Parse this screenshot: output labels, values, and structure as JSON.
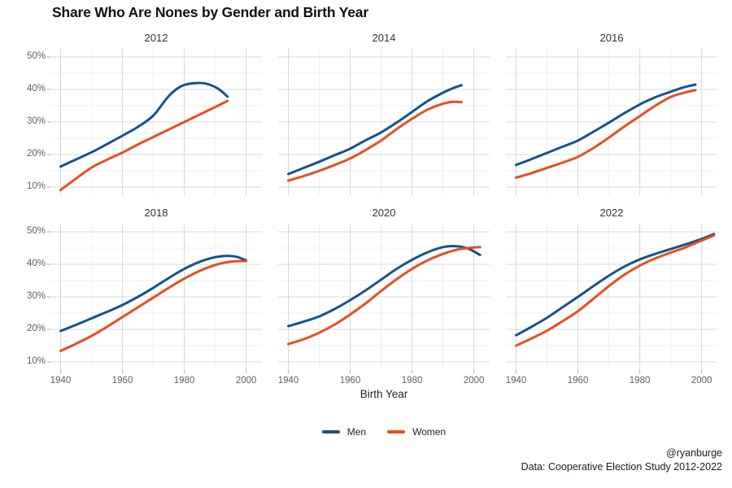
{
  "title": "Share Who Are Nones by Gender and Birth Year",
  "axis": {
    "x_label": "Birth Year"
  },
  "legend": {
    "men_label": "Men",
    "women_label": "Women"
  },
  "caption": {
    "line1": "@ryanburge",
    "line2": "Data: Cooperative Election Study 2012-2022"
  },
  "colors": {
    "men": "#17538c",
    "women": "#e84e1f",
    "grid_major": "#d9d9d9",
    "grid_minor": "#efefef",
    "tick_mark": "#b8b8b8",
    "tick_label": "#5f5f5f"
  },
  "chart_data": {
    "type": "line",
    "title": "Share Who Are Nones by Gender and Birth Year",
    "xlabel": "Birth Year",
    "ylabel": "",
    "legend_position": "bottom",
    "grid": true,
    "xlim": [
      1936.7,
      2005.1
    ],
    "ylim": [
      7.5,
      52.5
    ],
    "x_ticks": [
      {
        "value": 1940,
        "label": "1940"
      },
      {
        "value": 1960,
        "label": "1960"
      },
      {
        "value": 1980,
        "label": "1980"
      },
      {
        "value": 2000,
        "label": "2000"
      }
    ],
    "y_ticks": [
      {
        "value": 10,
        "label": "10%"
      },
      {
        "value": 20,
        "label": "20%"
      },
      {
        "value": 30,
        "label": "30%"
      },
      {
        "value": 40,
        "label": "40%"
      },
      {
        "value": 50,
        "label": "50%"
      }
    ],
    "series_names": [
      "Men",
      "Women"
    ],
    "facets": [
      {
        "label": "2012",
        "series": [
          {
            "name": "Men",
            "x": [
              1940,
              1945,
              1950,
              1955,
              1960,
              1965,
              1970,
              1975,
              1979,
              1983,
              1987,
              1991,
              1994
            ],
            "y": [
              16.3,
              18.5,
              20.7,
              23.2,
              25.8,
              28.5,
              32.0,
              38.0,
              41.0,
              41.9,
              41.8,
              40.2,
              37.8
            ]
          },
          {
            "name": "Women",
            "x": [
              1940,
              1945,
              1950,
              1955,
              1960,
              1965,
              1970,
              1975,
              1980,
              1985,
              1990,
              1994
            ],
            "y": [
              9.1,
              12.6,
              16.0,
              18.4,
              20.6,
              23.1,
              25.4,
              27.7,
              30.0,
              32.3,
              34.6,
              36.5
            ]
          }
        ]
      },
      {
        "label": "2014",
        "series": [
          {
            "name": "Men",
            "x": [
              1940,
              1945,
              1950,
              1955,
              1960,
              1965,
              1970,
              1975,
              1980,
              1985,
              1990,
              1993,
              1996
            ],
            "y": [
              14.0,
              15.9,
              17.8,
              19.8,
              21.8,
              24.4,
              26.8,
              29.8,
              33.1,
              36.4,
              39.0,
              40.3,
              41.3
            ]
          },
          {
            "name": "Women",
            "x": [
              1940,
              1945,
              1950,
              1955,
              1960,
              1965,
              1970,
              1975,
              1980,
              1985,
              1990,
              1993,
              1996
            ],
            "y": [
              12.0,
              13.4,
              15.0,
              16.8,
              18.8,
              21.4,
              24.3,
              27.8,
              31.0,
              33.8,
              35.6,
              36.2,
              36.1
            ]
          }
        ]
      },
      {
        "label": "2016",
        "series": [
          {
            "name": "Men",
            "x": [
              1940,
              1945,
              1950,
              1955,
              1960,
              1965,
              1970,
              1975,
              1980,
              1985,
              1990,
              1994,
              1998
            ],
            "y": [
              16.8,
              18.6,
              20.5,
              22.4,
              24.3,
              27.0,
              29.8,
              32.7,
              35.4,
              37.6,
              39.3,
              40.6,
              41.5
            ]
          },
          {
            "name": "Women",
            "x": [
              1940,
              1945,
              1950,
              1955,
              1960,
              1965,
              1970,
              1975,
              1980,
              1985,
              1990,
              1994,
              1998
            ],
            "y": [
              12.9,
              14.3,
              15.9,
              17.5,
              19.3,
              22.0,
              25.2,
              28.6,
              31.8,
              35.0,
              37.7,
              38.9,
              39.8
            ]
          }
        ]
      },
      {
        "label": "2018",
        "series": [
          {
            "name": "Men",
            "x": [
              1940,
              1945,
              1950,
              1955,
              1960,
              1965,
              1970,
              1975,
              1980,
              1985,
              1990,
              1994,
              1997,
              2000
            ],
            "y": [
              19.5,
              21.4,
              23.4,
              25.4,
              27.5,
              30.0,
              32.8,
              35.8,
              38.6,
              40.8,
              42.2,
              42.6,
              42.3,
              41.2
            ]
          },
          {
            "name": "Women",
            "x": [
              1940,
              1945,
              1950,
              1955,
              1960,
              1965,
              1970,
              1975,
              1980,
              1985,
              1990,
              1995,
              2000
            ],
            "y": [
              13.4,
              15.6,
              18.0,
              20.8,
              23.8,
              26.8,
              29.8,
              32.8,
              35.6,
              38.0,
              39.8,
              40.8,
              41.0
            ]
          }
        ]
      },
      {
        "label": "2020",
        "series": [
          {
            "name": "Men",
            "x": [
              1940,
              1945,
              1950,
              1955,
              1960,
              1965,
              1970,
              1975,
              1980,
              1985,
              1990,
              1994,
              1998,
              2002
            ],
            "y": [
              21.0,
              22.4,
              24.0,
              26.3,
              29.0,
              32.0,
              35.3,
              38.6,
              41.4,
              43.7,
              45.3,
              45.6,
              44.9,
              42.9
            ]
          },
          {
            "name": "Women",
            "x": [
              1940,
              1945,
              1950,
              1955,
              1960,
              1965,
              1970,
              1975,
              1980,
              1985,
              1990,
              1995,
              1999,
              2002
            ],
            "y": [
              15.5,
              17.0,
              19.0,
              21.5,
              24.6,
              28.0,
              31.8,
              35.4,
              38.6,
              41.2,
              43.2,
              44.6,
              45.1,
              45.3
            ]
          }
        ]
      },
      {
        "label": "2022",
        "series": [
          {
            "name": "Men",
            "x": [
              1940,
              1945,
              1950,
              1955,
              1960,
              1965,
              1970,
              1975,
              1980,
              1985,
              1990,
              1995,
              2000,
              2004
            ],
            "y": [
              18.2,
              20.8,
              23.6,
              26.8,
              30.0,
              33.3,
              36.5,
              39.3,
              41.5,
              43.2,
              44.7,
              46.2,
              47.8,
              49.3
            ]
          },
          {
            "name": "Women",
            "x": [
              1940,
              1945,
              1950,
              1955,
              1960,
              1965,
              1970,
              1975,
              1980,
              1985,
              1990,
              1995,
              2000,
              2004
            ],
            "y": [
              15.0,
              17.2,
              19.6,
              22.5,
              25.6,
              29.4,
              33.3,
              36.8,
              39.6,
              41.8,
              43.6,
              45.3,
              47.3,
              48.9
            ]
          }
        ]
      }
    ]
  }
}
